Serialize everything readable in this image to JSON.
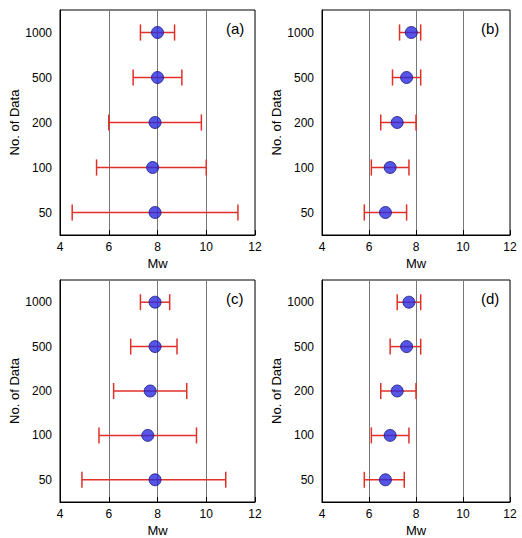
{
  "chart_data": [
    {
      "type": "scatter",
      "title": "(a)",
      "x_label": "Mw",
      "y_label": "No. of Data",
      "categories": [
        "50",
        "100",
        "200",
        "500",
        "1000"
      ],
      "values": [
        7.9,
        7.8,
        7.9,
        8.0,
        8.0
      ],
      "lower": [
        4.5,
        5.5,
        6.0,
        7.0,
        7.3
      ],
      "upper": [
        11.3,
        10.0,
        9.8,
        9.0,
        8.7
      ],
      "color": "#2a2ae0",
      "marker": "circle",
      "xlim": [
        4,
        12
      ],
      "xticks": [
        4,
        6,
        8,
        10,
        12
      ],
      "grid": true
    },
    {
      "type": "scatter",
      "title": "(b)",
      "x_label": "Mw",
      "y_label": "No. of Data",
      "categories": [
        "50",
        "100",
        "200",
        "500",
        "1000"
      ],
      "values": [
        6.7,
        6.9,
        7.2,
        7.6,
        7.8
      ],
      "lower": [
        5.8,
        6.1,
        6.5,
        7.0,
        7.3
      ],
      "upper": [
        7.6,
        7.7,
        8.0,
        8.2,
        8.2
      ],
      "color": "#2a2ae0",
      "marker": "circle",
      "xlim": [
        4,
        12
      ],
      "xticks": [
        4,
        6,
        8,
        10,
        12
      ],
      "grid": true
    },
    {
      "type": "scatter",
      "title": "(c)",
      "x_label": "Mw",
      "y_label": "No. of Data",
      "categories": [
        "50",
        "100",
        "200",
        "500",
        "1000"
      ],
      "values": [
        7.9,
        7.6,
        7.7,
        7.9,
        7.9
      ],
      "lower": [
        4.9,
        5.6,
        6.2,
        6.9,
        7.3
      ],
      "upper": [
        10.8,
        9.6,
        9.2,
        8.8,
        8.5
      ],
      "color": "#2a2ae0",
      "marker": "circle",
      "xlim": [
        4,
        12
      ],
      "xticks": [
        4,
        6,
        8,
        10,
        12
      ],
      "grid": true
    },
    {
      "type": "scatter",
      "title": "(d)",
      "x_label": "Mw",
      "y_label": "No. of Data",
      "categories": [
        "50",
        "100",
        "200",
        "500",
        "1000"
      ],
      "values": [
        6.7,
        6.9,
        7.2,
        7.6,
        7.7
      ],
      "lower": [
        5.8,
        6.1,
        6.5,
        6.9,
        7.2
      ],
      "upper": [
        7.5,
        7.7,
        8.0,
        8.2,
        8.2
      ],
      "color": "#2a2ae0",
      "marker": "circle",
      "xlim": [
        4,
        12
      ],
      "xticks": [
        4,
        6,
        8,
        10,
        12
      ],
      "grid": true
    }
  ]
}
